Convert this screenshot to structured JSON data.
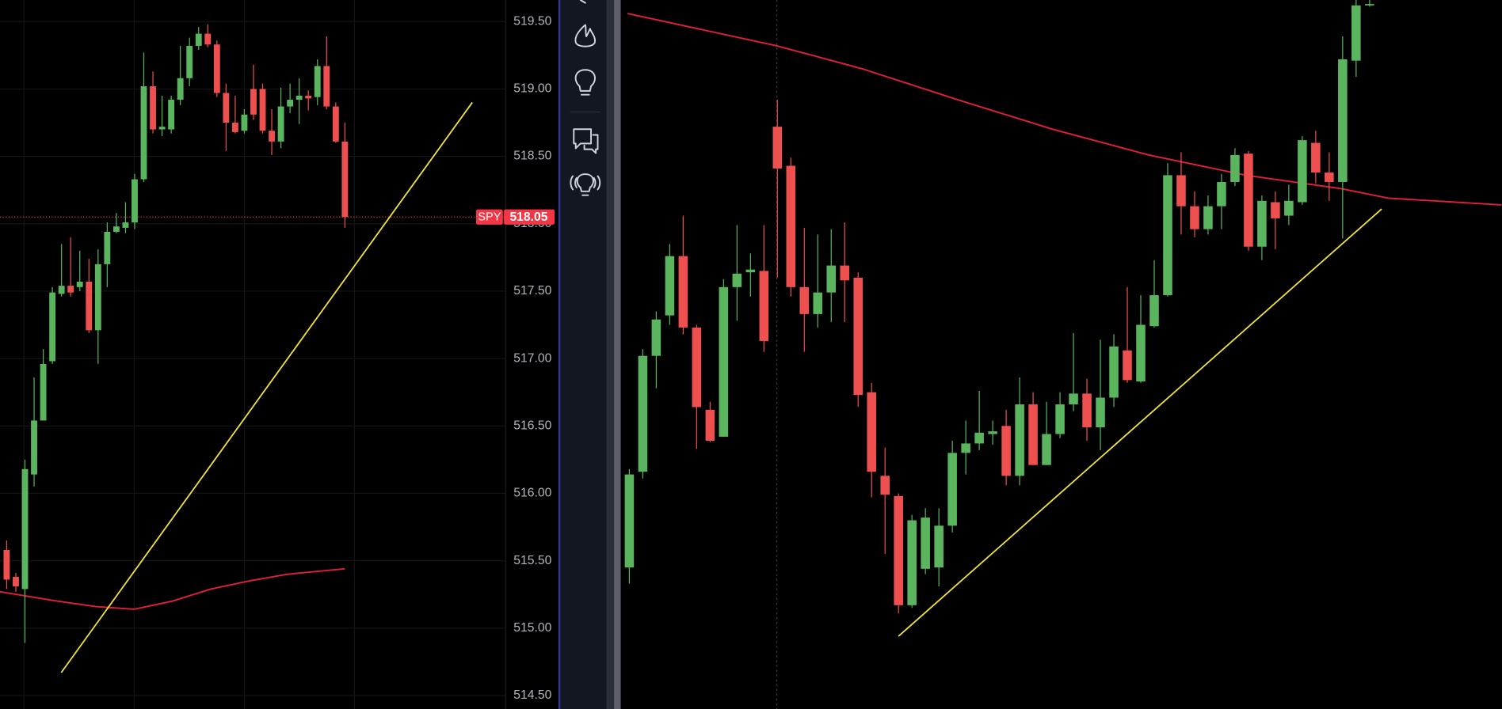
{
  "chart_data": [
    {
      "type": "candlestick",
      "up_color": "#5ab55e",
      "down_color": "#ee4f4f",
      "grid": true,
      "xlim": [
        -0.73,
        54.6
      ],
      "ylim": [
        514.4,
        519.66
      ],
      "yticks": [
        {
          "value": 514.5,
          "label": "514.50"
        },
        {
          "value": 515,
          "label": "515.00"
        },
        {
          "value": 515.5,
          "label": "515.50"
        },
        {
          "value": 516,
          "label": "516.00"
        },
        {
          "value": 516.5,
          "label": "516.50"
        },
        {
          "value": 517,
          "label": "517.00"
        },
        {
          "value": 517.5,
          "label": "517.50"
        },
        {
          "value": 518,
          "label": "518.00"
        },
        {
          "value": 518.5,
          "label": "518.50"
        },
        {
          "value": 519,
          "label": "519.00"
        },
        {
          "value": 519.5,
          "label": "519.50"
        }
      ],
      "open": [
        515.58,
        515.38,
        515.29,
        516.14,
        516.54,
        516.98,
        517.48,
        517.54,
        517.53,
        517.57,
        517.21,
        517.7,
        517.94,
        517.97,
        518.01,
        518.33,
        519.02,
        518.7,
        518.7,
        518.92,
        519.08,
        519.32,
        519.41,
        519.33,
        518.97,
        518.75,
        518.69,
        519.0,
        519.0,
        518.69,
        518.61,
        518.87,
        518.92,
        518.95,
        518.94,
        519.17,
        518.87,
        518.61
      ],
      "high": [
        515.65,
        515.41,
        516.25,
        516.86,
        517.07,
        517.53,
        517.85,
        517.9,
        517.8,
        517.74,
        517.81,
        518.01,
        518.08,
        518.16,
        518.37,
        519.27,
        519.13,
        518.95,
        518.95,
        519.32,
        519.38,
        519.46,
        519.48,
        519.36,
        519.04,
        518.95,
        518.85,
        519.18,
        519.04,
        518.85,
        519.01,
        519.04,
        519.08,
        518.99,
        519.22,
        519.39,
        518.9,
        518.75
      ],
      "low": [
        515.29,
        515.27,
        514.89,
        516.05,
        516.54,
        516.96,
        517.46,
        517.46,
        517.5,
        517.19,
        516.96,
        517.53,
        517.93,
        517.93,
        517.96,
        518.31,
        518.67,
        518.65,
        518.67,
        518.88,
        519.02,
        519.29,
        519.31,
        518.94,
        518.54,
        518.67,
        518.67,
        518.77,
        518.67,
        518.51,
        518.56,
        518.82,
        518.74,
        518.84,
        518.88,
        518.85,
        518.6,
        517.97
      ],
      "close": [
        515.36,
        515.31,
        516.18,
        516.54,
        516.96,
        517.49,
        517.54,
        517.49,
        517.57,
        517.21,
        517.7,
        517.94,
        517.98,
        518.01,
        518.33,
        519.02,
        518.7,
        518.72,
        518.92,
        519.08,
        519.32,
        519.41,
        519.33,
        518.97,
        518.75,
        518.68,
        518.81,
        518.81,
        518.69,
        518.61,
        518.87,
        518.92,
        518.95,
        518.93,
        519.17,
        518.87,
        518.61,
        518.05
      ],
      "moving_average": {
        "color": "#e0203a",
        "x": [
          -0.73,
          5.56,
          9.75,
          13.94,
          18.13,
          22.33,
          26.52,
          30.71,
          37
        ],
        "y": [
          515.27,
          515.2,
          515.16,
          515.14,
          515.2,
          515.29,
          515.35,
          515.4,
          515.44
        ]
      },
      "trendline": {
        "color": "#f2e33a",
        "x": [
          5.97,
          50.94
        ],
        "y": [
          514.67,
          518.9
        ]
      },
      "price_label": {
        "symbol": "SPY",
        "value": 518.05,
        "color": "#f23645"
      }
    },
    {
      "type": "candlestick",
      "up_color": "#5ab55e",
      "down_color": "#ee4f4f",
      "grid": false,
      "xlim": [
        -0.64,
        64.84
      ],
      "ylim": [
        514.4,
        519.66
      ],
      "open": [
        515.45,
        516.16,
        517.02,
        517.32,
        517.76,
        517.23,
        516.62,
        516.42,
        517.53,
        517.64,
        517.65,
        518.72,
        518.43,
        517.53,
        517.33,
        517.49,
        517.69,
        517.6,
        516.75,
        516.13,
        515.98,
        515.17,
        515.44,
        515.45,
        515.76,
        516.3,
        516.37,
        516.44,
        516.5,
        516.13,
        516.66,
        516.21,
        516.44,
        516.66,
        516.74,
        516.49,
        516.71,
        517.06,
        516.83,
        517.24,
        517.47,
        518.36,
        518.13,
        517.96,
        518.13,
        518.31,
        518.52,
        517.83,
        518.16,
        518.06,
        518.16,
        518.6,
        518.38,
        518.31,
        519.21,
        519.62
      ],
      "high": [
        516.18,
        517.07,
        517.35,
        517.85,
        518.06,
        517.25,
        516.68,
        517.59,
        517.99,
        517.78,
        517.99,
        518.92,
        518.49,
        517.97,
        517.92,
        517.96,
        518.01,
        517.64,
        516.82,
        516.34,
        516.0,
        515.84,
        515.89,
        515.89,
        516.39,
        516.54,
        516.76,
        516.54,
        516.62,
        516.86,
        516.75,
        516.68,
        516.75,
        517.19,
        516.85,
        517.14,
        517.18,
        517.53,
        517.47,
        517.73,
        518.45,
        518.53,
        518.24,
        518.21,
        518.37,
        518.56,
        518.54,
        518.21,
        518.24,
        518.29,
        518.65,
        518.69,
        518.53,
        519.39,
        519.66,
        519.66
      ],
      "low": [
        515.33,
        516.11,
        516.78,
        517.25,
        517.18,
        516.33,
        516.38,
        516.42,
        517.28,
        517.46,
        517.05,
        517.6,
        517.46,
        517.05,
        517.23,
        517.27,
        517.27,
        516.64,
        515.97,
        515.55,
        515.11,
        515.15,
        515.4,
        515.31,
        515.71,
        516.14,
        516.32,
        516.36,
        516.06,
        516.06,
        516.21,
        516.21,
        516.41,
        516.61,
        516.39,
        516.32,
        516.64,
        516.82,
        516.82,
        517.23,
        517.46,
        517.92,
        517.9,
        517.92,
        517.96,
        518.28,
        517.8,
        517.73,
        517.81,
        517.99,
        518.14,
        518.3,
        518.17,
        517.89,
        519.09,
        519.61
      ],
      "close": [
        516.14,
        517.02,
        517.29,
        517.76,
        517.23,
        516.64,
        516.39,
        517.53,
        517.63,
        517.66,
        517.13,
        518.41,
        517.53,
        517.33,
        517.49,
        517.69,
        517.58,
        516.73,
        516.16,
        515.99,
        515.17,
        515.8,
        515.82,
        515.76,
        516.3,
        516.37,
        516.45,
        516.46,
        516.13,
        516.66,
        516.21,
        516.44,
        516.66,
        516.74,
        516.49,
        516.71,
        517.09,
        516.84,
        517.25,
        517.47,
        518.36,
        518.13,
        517.96,
        518.13,
        518.31,
        518.51,
        517.83,
        518.17,
        518.04,
        518.17,
        518.62,
        518.38,
        518.31,
        519.22,
        519.62,
        519.63
      ],
      "moving_average": {
        "color": "#e0203a",
        "x": [
          -0.14,
          10.96,
          17.3,
          24.4,
          31.5,
          38.6,
          45.8,
          52.9,
          56.4,
          64.8
        ],
        "y": [
          519.56,
          519.32,
          519.15,
          518.92,
          518.7,
          518.51,
          518.36,
          518.26,
          518.19,
          518.14
        ]
      },
      "trendline": {
        "color": "#f2e33a",
        "x": [
          20.0,
          55.9
        ],
        "y": [
          514.94,
          518.11
        ]
      }
    }
  ]
}
